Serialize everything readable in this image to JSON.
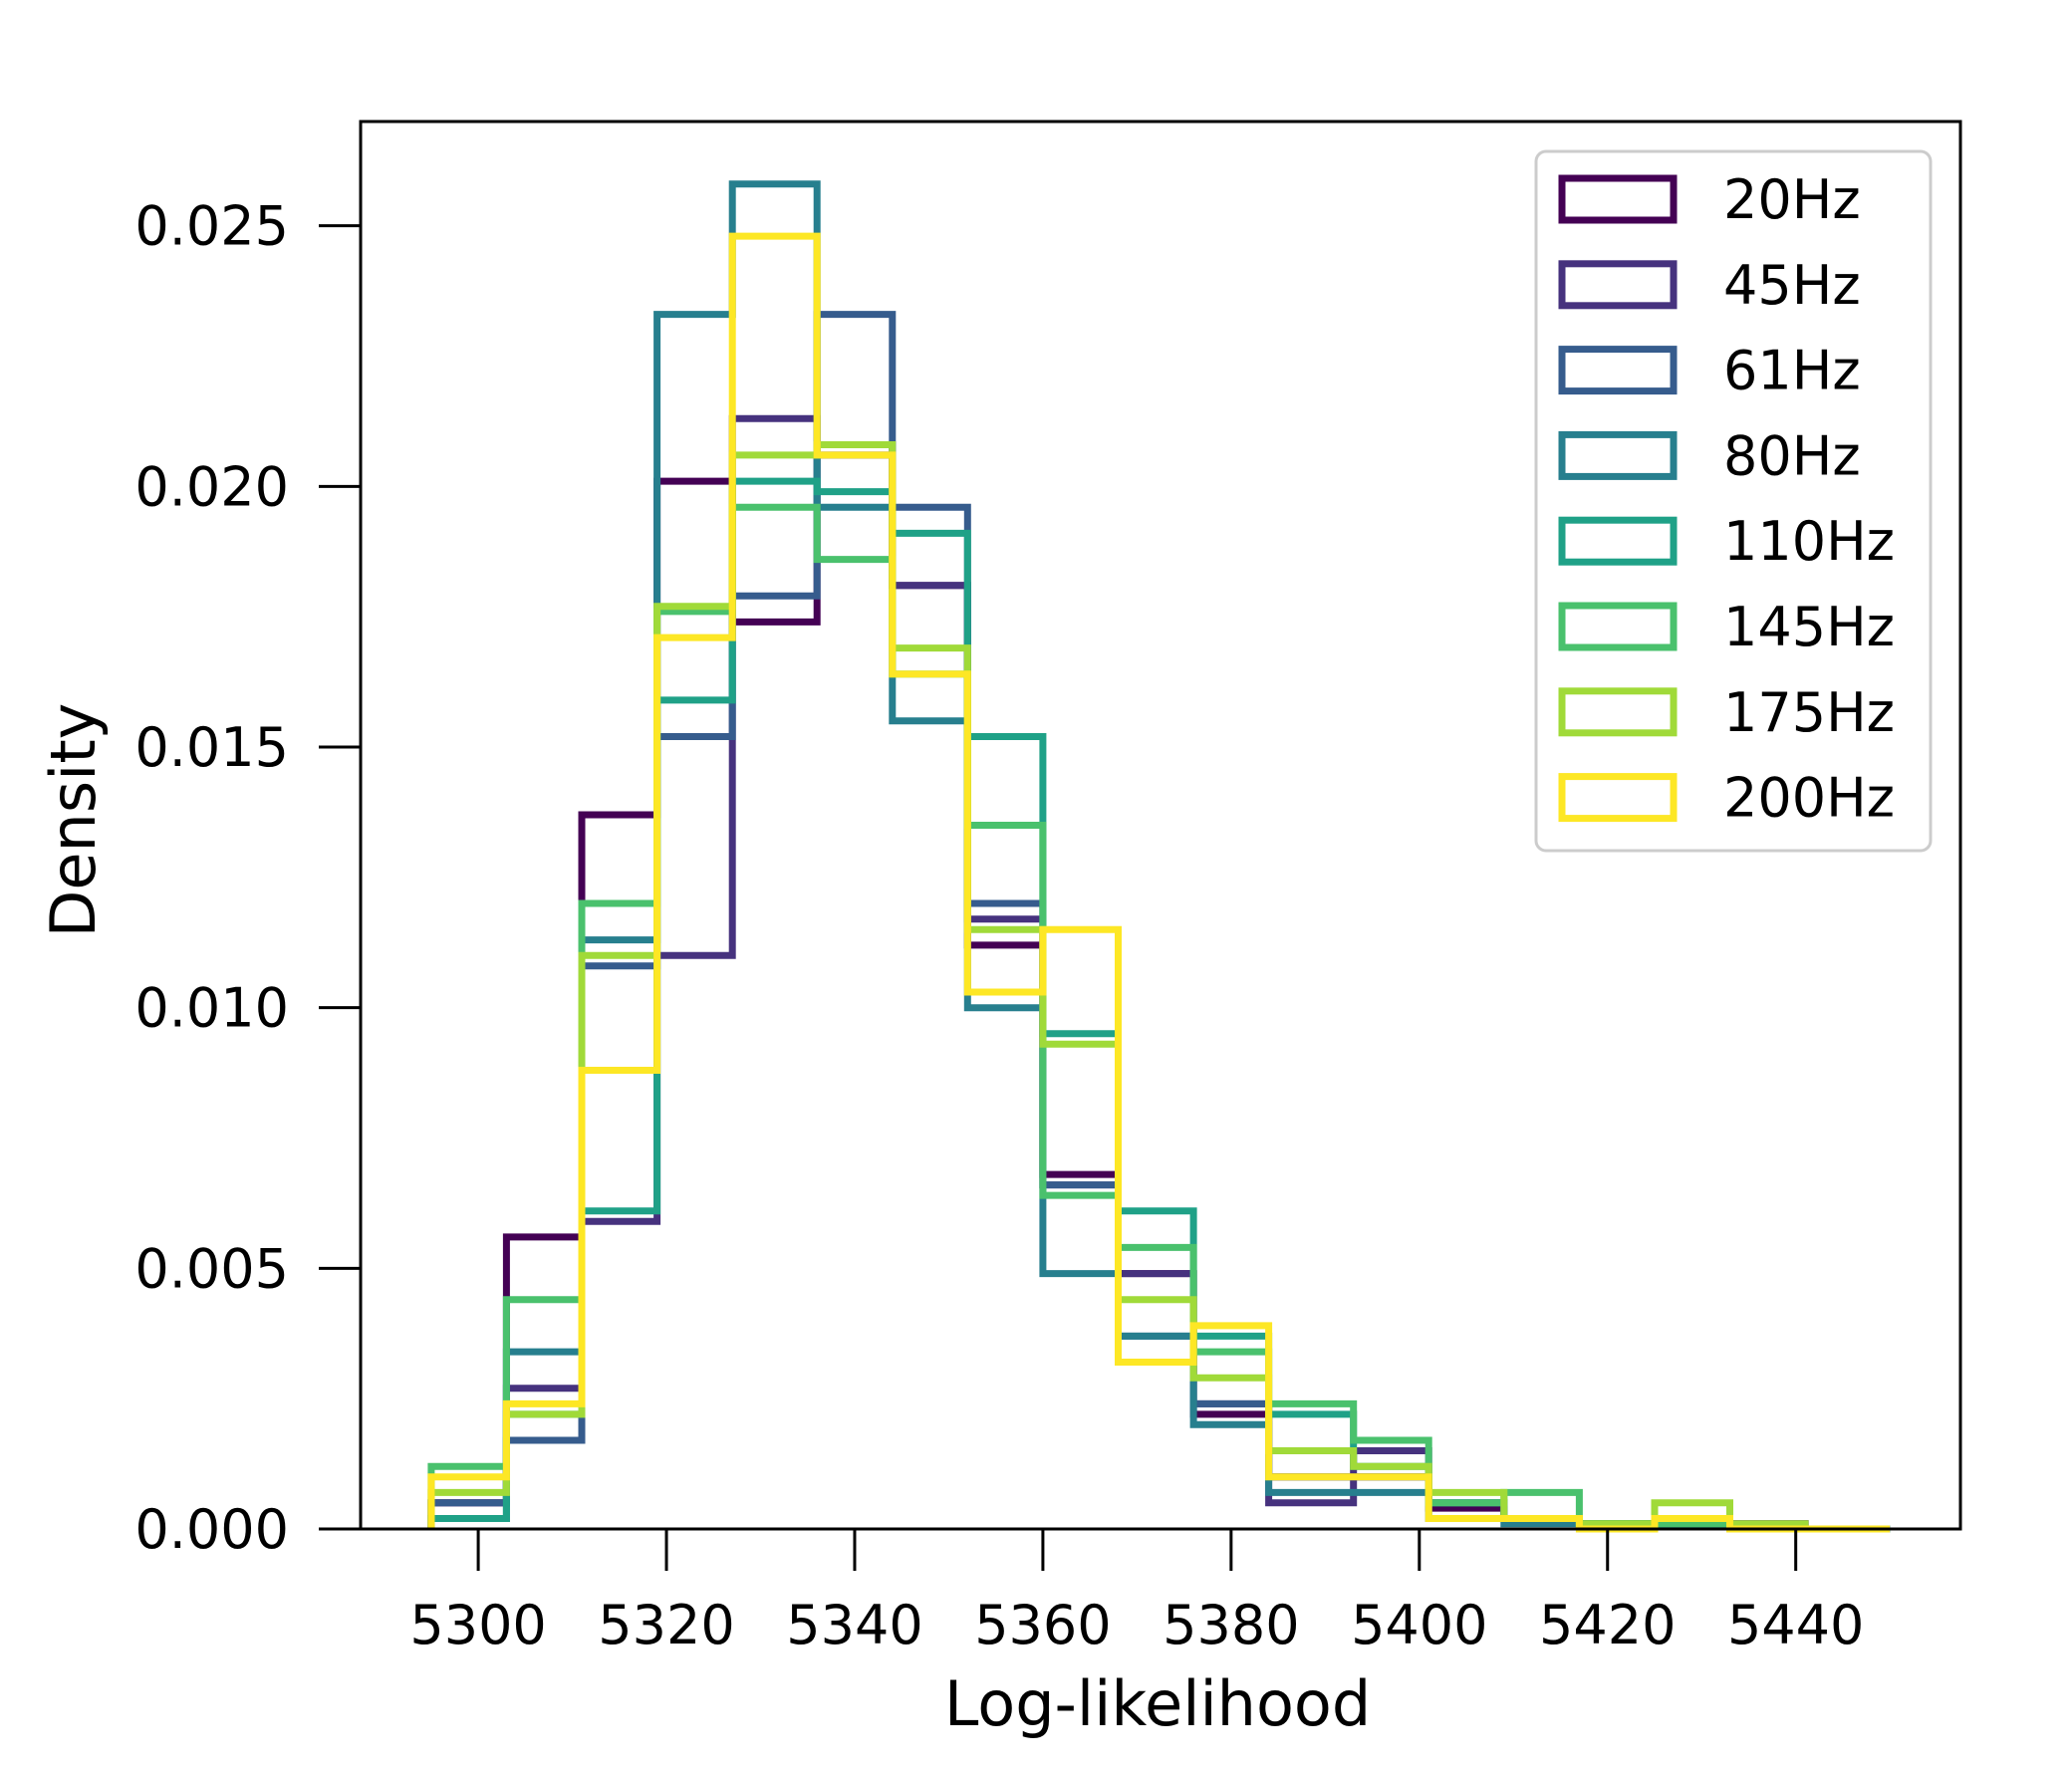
{
  "chart_data": {
    "type": "histogram-step",
    "title": "",
    "xlabel": "Log-likelihood",
    "ylabel": "Density",
    "xlim": [
      5287.5,
      5457.5
    ],
    "ylim": [
      0,
      0.027
    ],
    "xticks": [
      5300,
      5320,
      5340,
      5360,
      5380,
      5400,
      5420,
      5440
    ],
    "xtick_labels": [
      "5300",
      "5320",
      "5340",
      "5360",
      "5380",
      "5400",
      "5420",
      "5440"
    ],
    "yticks": [
      0,
      0.005,
      0.01,
      0.015,
      0.02,
      0.025
    ],
    "ytick_labels": [
      "0.000",
      "0.005",
      "0.010",
      "0.015",
      "0.020",
      "0.025"
    ],
    "bin_edges": [
      5295,
      5303,
      5311,
      5319,
      5327,
      5336,
      5344,
      5352,
      5360,
      5368,
      5376,
      5384,
      5393,
      5401,
      5409,
      5417,
      5425,
      5433,
      5441,
      5450
    ],
    "legend_position": "top-right",
    "series": [
      {
        "name": "20Hz",
        "color": "#440154",
        "values": [
          0.0005,
          0.0056,
          0.0137,
          0.0201,
          0.0174,
          0.0206,
          0.0181,
          0.0112,
          0.0068,
          0.0049,
          0.0022,
          0.001,
          0.001,
          0.0004,
          0.0002,
          0.0001,
          0.0001,
          0.0001,
          0.0
        ]
      },
      {
        "name": "45Hz",
        "color": "#46327e",
        "values": [
          0.0005,
          0.0027,
          0.0059,
          0.011,
          0.0213,
          0.0208,
          0.0181,
          0.0117,
          0.0066,
          0.0049,
          0.0024,
          0.0005,
          0.0015,
          0.0005,
          0.0002,
          0.0001,
          0.0001,
          0.0001,
          0.0
        ]
      },
      {
        "name": "61Hz",
        "color": "#365c8d",
        "values": [
          0.0005,
          0.0017,
          0.0108,
          0.0152,
          0.0179,
          0.0233,
          0.0196,
          0.012,
          0.0066,
          0.0037,
          0.0024,
          0.001,
          0.001,
          0.0005,
          0.0002,
          0.0001,
          0.0001,
          0.0,
          0.0
        ]
      },
      {
        "name": "80Hz",
        "color": "#277f8e",
        "values": [
          0.0002,
          0.0034,
          0.0113,
          0.0233,
          0.0258,
          0.0196,
          0.0155,
          0.01,
          0.0049,
          0.0037,
          0.002,
          0.0007,
          0.0007,
          0.0002,
          0.0001,
          0.0001,
          0.0001,
          0.0,
          0.0
        ]
      },
      {
        "name": "110Hz",
        "color": "#1fa187",
        "values": [
          0.0002,
          0.0022,
          0.0061,
          0.0159,
          0.0201,
          0.0199,
          0.0191,
          0.0152,
          0.0095,
          0.0061,
          0.0037,
          0.0022,
          0.0012,
          0.0005,
          0.0002,
          0.0001,
          0.0001,
          0.0,
          0.0
        ]
      },
      {
        "name": "145Hz",
        "color": "#4ac16d",
        "values": [
          0.0012,
          0.0044,
          0.012,
          0.0176,
          0.0196,
          0.0186,
          0.0164,
          0.0135,
          0.0064,
          0.0054,
          0.0034,
          0.0024,
          0.0017,
          0.0005,
          0.0007,
          0.0001,
          0.0001,
          0.0,
          0.0
        ]
      },
      {
        "name": "175Hz",
        "color": "#a0da39",
        "values": [
          0.0007,
          0.0022,
          0.011,
          0.0177,
          0.0206,
          0.0208,
          0.0169,
          0.0115,
          0.0093,
          0.0044,
          0.0029,
          0.0015,
          0.0012,
          0.0007,
          0.0002,
          0.0001,
          0.0005,
          0.0001,
          0.0
        ]
      },
      {
        "name": "200Hz",
        "color": "#fde725",
        "values": [
          0.001,
          0.0024,
          0.0088,
          0.0171,
          0.0248,
          0.0206,
          0.0164,
          0.0103,
          0.0115,
          0.0032,
          0.0039,
          0.001,
          0.001,
          0.0002,
          0.0002,
          0.0,
          0.0002,
          0.0,
          0.0
        ]
      }
    ]
  }
}
